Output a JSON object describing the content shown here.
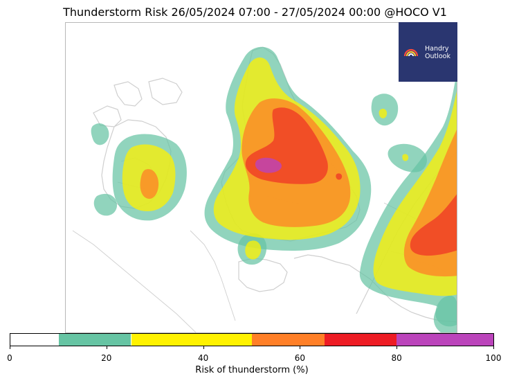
{
  "title": "Thunderstorm Risk 26/05/2024 07:00 - 27/05/2024 00:00 @HOCO V1",
  "logo": {
    "text": "Handry\nOutlook",
    "icon": "rainbow-icon",
    "background": "#2a3670"
  },
  "colorbar": {
    "label": "Risk of thunderstorm (%)",
    "range": [
      0,
      100
    ],
    "ticks": [
      {
        "value": 0,
        "label": "0"
      },
      {
        "value": 20,
        "label": "20"
      },
      {
        "value": 40,
        "label": "40"
      },
      {
        "value": 60,
        "label": "60"
      },
      {
        "value": 80,
        "label": "80"
      },
      {
        "value": 100,
        "label": "100"
      }
    ],
    "segments": [
      {
        "from": 0,
        "to": 10,
        "color": "#ffffff"
      },
      {
        "from": 10,
        "to": 25,
        "color": "#66c4a3"
      },
      {
        "from": 25,
        "to": 50,
        "color": "#fff200"
      },
      {
        "from": 50,
        "to": 65,
        "color": "#ff7f27"
      },
      {
        "from": 65,
        "to": 80,
        "color": "#ed1c24"
      },
      {
        "from": 80,
        "to": 100,
        "color": "#bb44bb"
      }
    ]
  },
  "colors": {
    "coastline": "#cfcfcf",
    "frame": "#b8b8b8"
  }
}
